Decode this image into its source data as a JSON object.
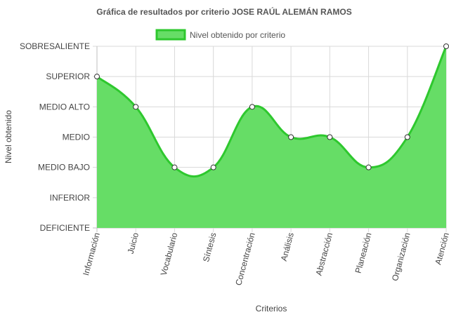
{
  "chart_data": {
    "type": "area",
    "title": "Gráfica de resultados por criterio JOSE RAÚL ALEMÁN RAMOS",
    "xlabel": "Criterios",
    "ylabel": "Nivel obtenido",
    "levels": [
      "DEFICIENTE",
      "INFERIOR",
      "MEDIO BAJO",
      "MEDIO",
      "MEDIO ALTO",
      "SUPERIOR",
      "SOBRESALIENTE"
    ],
    "categories": [
      "Información",
      "Juicio",
      "Vocabulario",
      "Síntesis",
      "Concentración",
      "Análisis",
      "Abstracción",
      "Planeación",
      "Organización",
      "Atención"
    ],
    "series": [
      {
        "name": "Nivel obtenido por criterio",
        "values": [
          5,
          4,
          2,
          2,
          4,
          3,
          3,
          2,
          3,
          6
        ],
        "color": "#66dd66",
        "stroke": "#2ec82e"
      }
    ],
    "ylim": [
      0,
      6
    ],
    "grid": true,
    "legend": "top-center"
  }
}
